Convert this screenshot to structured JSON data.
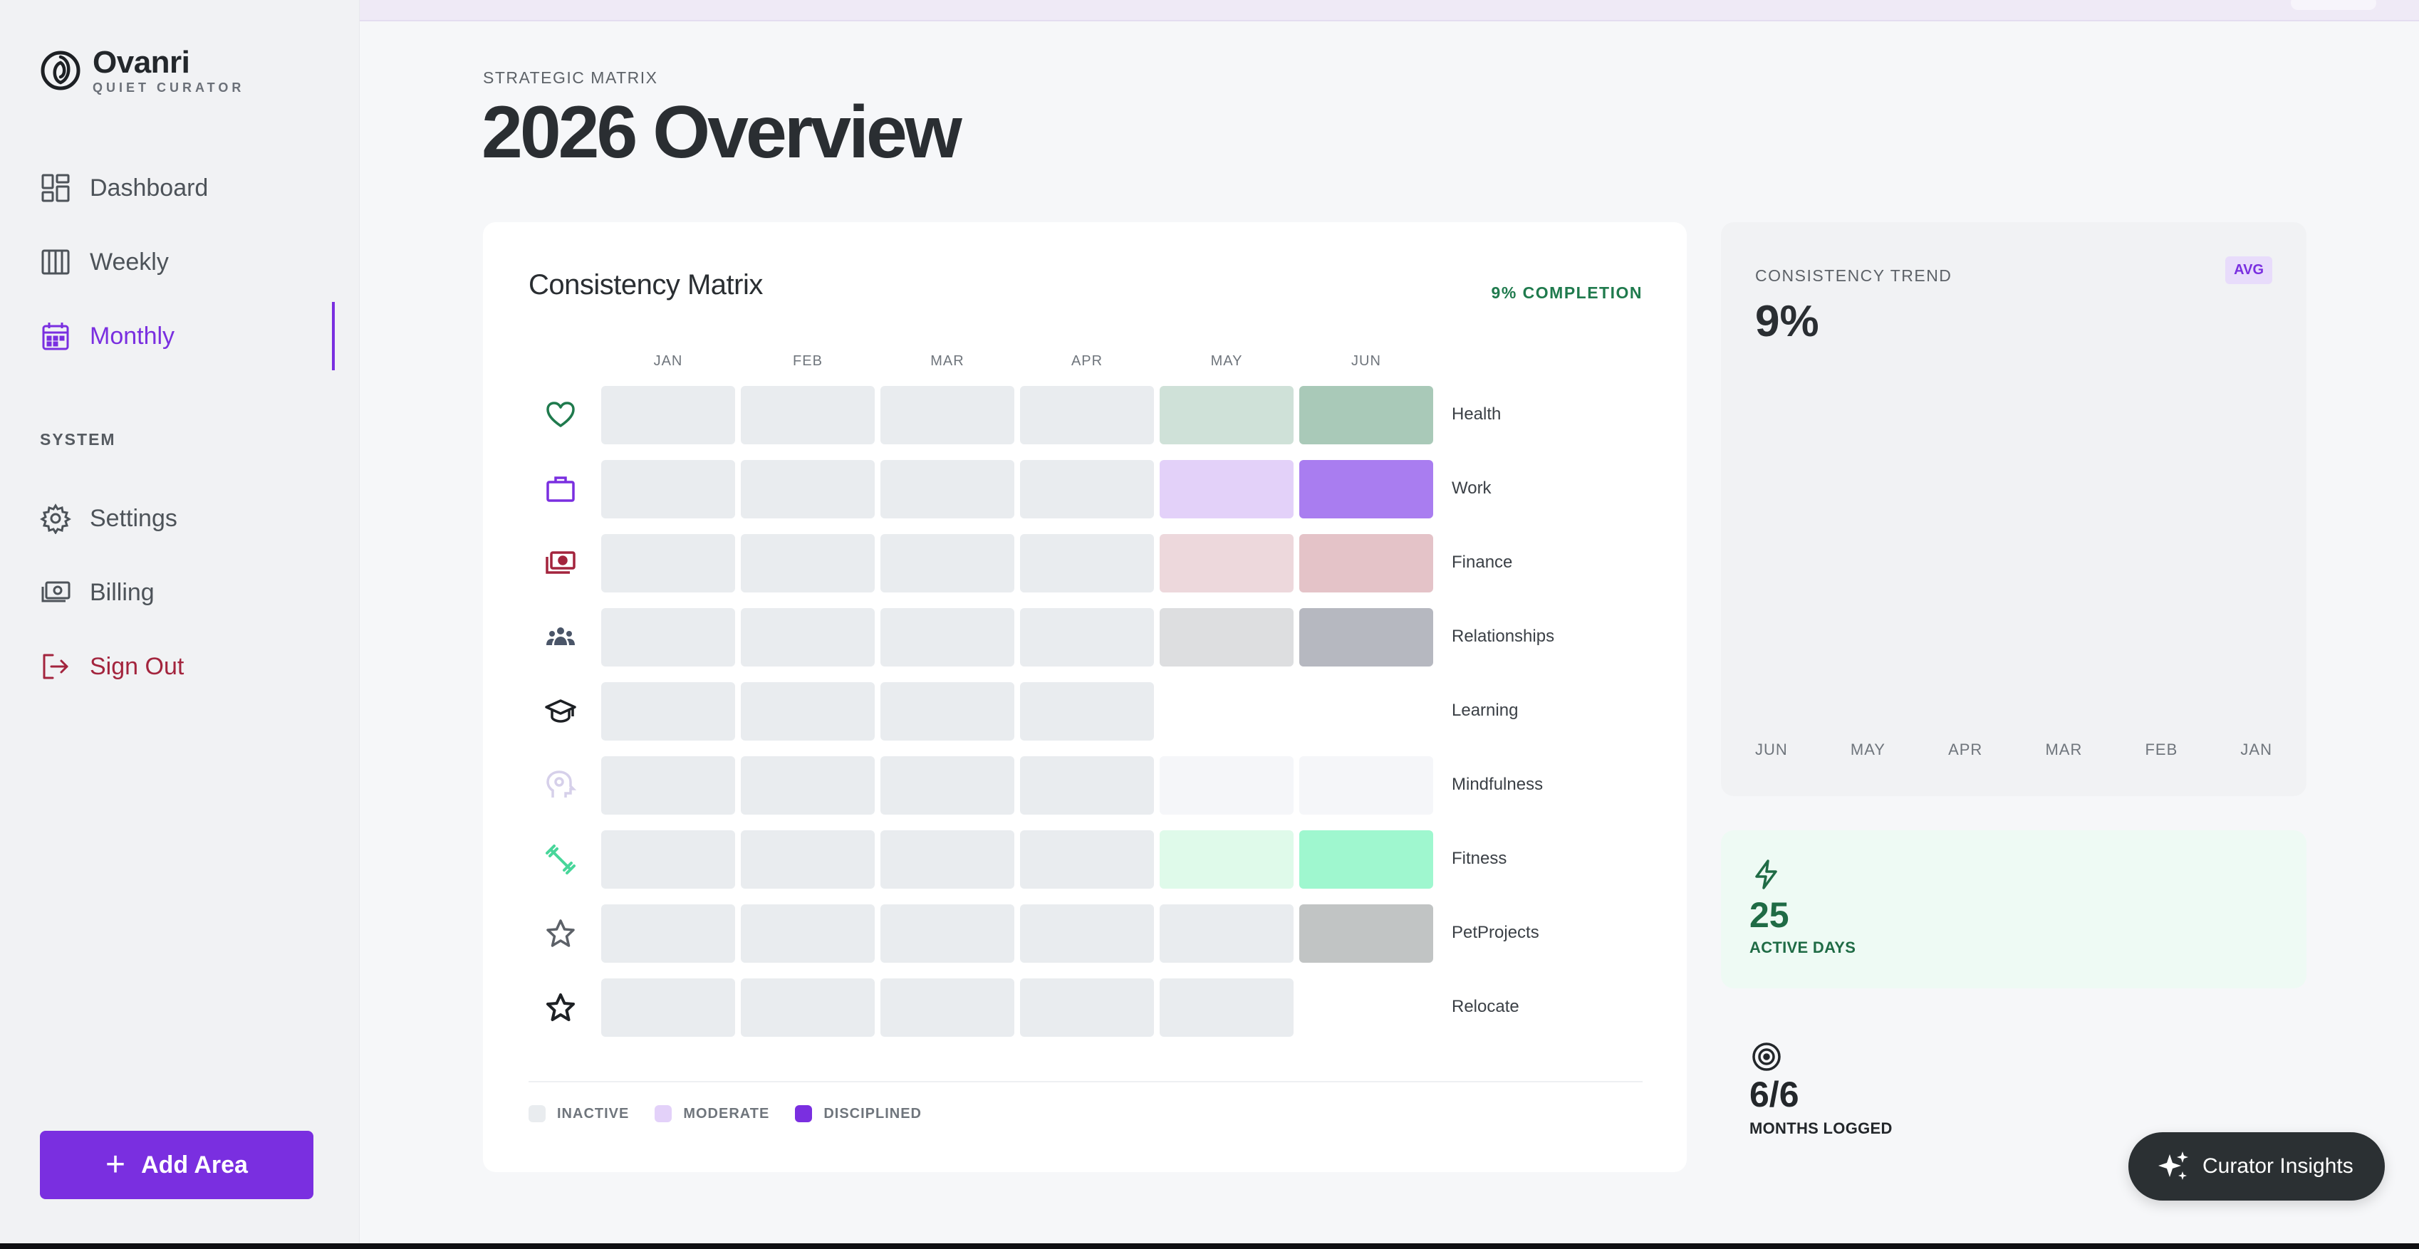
{
  "brand": {
    "name": "Ovanri",
    "tagline": "QUIET CURATOR"
  },
  "nav": {
    "items": [
      {
        "label": "Dashboard",
        "icon": "dashboard-icon"
      },
      {
        "label": "Weekly",
        "icon": "columns-icon"
      },
      {
        "label": "Monthly",
        "icon": "calendar-icon",
        "active": true
      }
    ],
    "system_label": "SYSTEM",
    "system_items": [
      {
        "label": "Settings",
        "icon": "gear-icon"
      },
      {
        "label": "Billing",
        "icon": "billing-icon"
      },
      {
        "label": "Sign Out",
        "icon": "sign-out-icon"
      }
    ],
    "add_area_label": "Add Area"
  },
  "header": {
    "eyebrow": "STRATEGIC MATRIX",
    "title": "2026 Overview"
  },
  "matrix": {
    "title": "Consistency Matrix",
    "completion": "9% COMPLETION",
    "months": [
      "JAN",
      "FEB",
      "MAR",
      "APR",
      "MAY",
      "JUN"
    ],
    "rows": [
      {
        "label": "Health",
        "icon": "heart-icon",
        "icon_color": "#1f7a4d",
        "cells": [
          "#e9ecef",
          "#e9ecef",
          "#e9ecef",
          "#e9ecef",
          "#cfe1d8",
          "#a9c9b8"
        ]
      },
      {
        "label": "Work",
        "icon": "briefcase-icon",
        "icon_color": "#7a2fe0",
        "cells": [
          "#e9ecef",
          "#e9ecef",
          "#e9ecef",
          "#e9ecef",
          "#e3d1f9",
          "#a97df0"
        ]
      },
      {
        "label": "Finance",
        "icon": "money-icon",
        "icon_color": "#a3243d",
        "cells": [
          "#e9ecef",
          "#e9ecef",
          "#e9ecef",
          "#e9ecef",
          "#edd8dc",
          "#e4c3c8"
        ]
      },
      {
        "label": "Relationships",
        "icon": "people-icon",
        "icon_color": "#4a5568",
        "cells": [
          "#e9ecef",
          "#e9ecef",
          "#e9ecef",
          "#e9ecef",
          "#dddee0",
          "#b6b8c0"
        ]
      },
      {
        "label": "Learning",
        "icon": "graduation-cap-icon",
        "icon_color": "#1d2024",
        "cells": [
          "#e9ecef",
          "#e9ecef",
          "#e9ecef",
          "#e9ecef",
          "",
          ""
        ]
      },
      {
        "label": "Mindfulness",
        "icon": "mind-icon",
        "icon_color": "#d6d0ea",
        "cells": [
          "#e9ecef",
          "#e9ecef",
          "#e9ecef",
          "#e9ecef",
          "#f5f6f9",
          "#f5f6f9"
        ]
      },
      {
        "label": "Fitness",
        "icon": "dumbbell-icon",
        "icon_color": "#48d69a",
        "cells": [
          "#e9ecef",
          "#e9ecef",
          "#e9ecef",
          "#e9ecef",
          "#dffaea",
          "#9ff7cf"
        ]
      },
      {
        "label": "PetProjects",
        "icon": "star-outline-icon",
        "icon_color": "#5c6168",
        "cells": [
          "#e9ecef",
          "#e9ecef",
          "#e9ecef",
          "#e9ecef",
          "#e9ecef",
          "#c1c4c4"
        ]
      },
      {
        "label": "Relocate",
        "icon": "star-icon",
        "icon_color": "#1d2024",
        "cells": [
          "#e9ecef",
          "#e9ecef",
          "#e9ecef",
          "#e9ecef",
          "#e9ecef",
          ""
        ]
      }
    ],
    "legend": [
      {
        "label": "INACTIVE",
        "color": "#e9ecef"
      },
      {
        "label": "MODERATE",
        "color": "#e3d1f9"
      },
      {
        "label": "DISCIPLINED",
        "color": "#7a2fe0"
      }
    ]
  },
  "trend": {
    "label": "CONSISTENCY TREND",
    "badge": "AVG",
    "value": "9%",
    "months": [
      "JUN",
      "MAY",
      "APR",
      "MAR",
      "FEB",
      "JAN"
    ]
  },
  "stats": {
    "active_days": {
      "value": "25",
      "caption": "ACTIVE DAYS",
      "color": "#1f6b45"
    },
    "months_logged": {
      "value": "6/6",
      "caption": "MONTHS LOGGED",
      "color": "#23272b"
    }
  },
  "insights_label": "Curator Insights",
  "colors": {
    "accent": "#7a2fe0",
    "danger": "#a3243d",
    "success": "#1f7a4d"
  }
}
